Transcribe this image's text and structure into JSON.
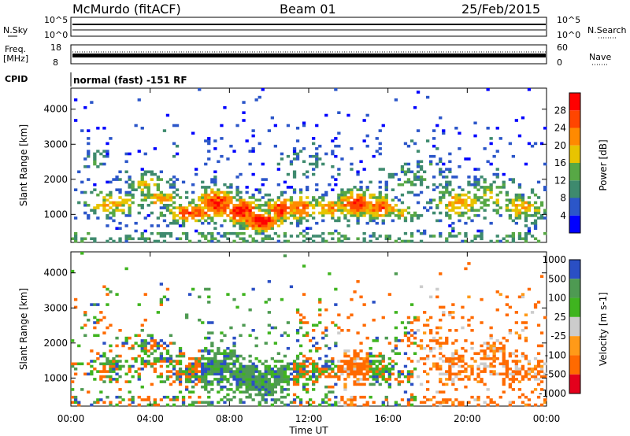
{
  "header": {
    "station": "McMurdo (fitACF)",
    "beam": "Beam 01",
    "date": "25/Feb/2015"
  },
  "noise_panel": {
    "left_label": "N.Sky",
    "right_label": "N.Search",
    "left_ticks": [
      "10^5",
      "10^0"
    ],
    "right_ticks": [
      "10^5",
      "10^0"
    ]
  },
  "freq_panel": {
    "left_label_1": "Freq.",
    "left_label_2": "[MHz]",
    "right_label": "Nave",
    "left_ticks": [
      "18",
      "8"
    ],
    "right_ticks": [
      "60",
      "0"
    ]
  },
  "cpid": {
    "label": "CPID",
    "text": "normal (fast) -151 RF"
  },
  "x_axis": {
    "title": "Time UT",
    "ticks": [
      "00:00",
      "04:00",
      "08:00",
      "12:00",
      "16:00",
      "20:00",
      "00:00"
    ]
  },
  "colors": {
    "power": [
      "#0000ff",
      "#2b56c9",
      "#3e8a6e",
      "#57a845",
      "#e8c400",
      "#ff8a00",
      "#ff4500",
      "#ff0000"
    ],
    "velocity": [
      "#e4001c",
      "#ff6a00",
      "#ff9a18",
      "#cccccc",
      "#3fb41f",
      "#4e9a52",
      "#2a4fc4"
    ]
  },
  "chart_data": [
    {
      "type": "heatmap",
      "ylabel": "Slant Range [km]",
      "xlabel": "",
      "y_ticks": [
        "1000",
        "2000",
        "3000",
        "4000"
      ],
      "ylim": [
        200,
        4600
      ],
      "colorbar_title": "Power [dB]",
      "colorbar_ticks": [
        "4",
        "8",
        "12",
        "16",
        "20",
        "24",
        "28"
      ]
    },
    {
      "type": "heatmap",
      "ylabel": "Slant Range [km]",
      "xlabel": "Time UT",
      "y_ticks": [
        "1000",
        "2000",
        "3000",
        "4000"
      ],
      "ylim": [
        200,
        4600
      ],
      "colorbar_title": "Velocity [m s-1]",
      "colorbar_ticks": [
        "1000",
        "500",
        "100",
        "25",
        "-25",
        "-100",
        "-500",
        "-1000"
      ]
    }
  ]
}
